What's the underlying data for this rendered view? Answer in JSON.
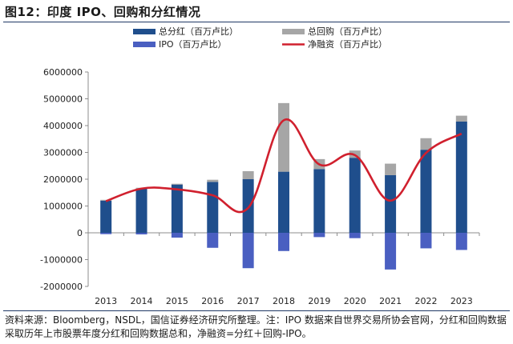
{
  "figure_title": "图12：印度 IPO、回购和分红情况",
  "source_note": "资料来源：Bloomberg，NSDL，国信证券经济研究所整理。注：IPO 数据来自世界交易所协会官网，分红和回购数据采取历年上市股票年度分红和回购数据总和，净融资=分红＋回购-IPO。",
  "colors": {
    "dividend": "#1f4e8c",
    "buyback": "#a6a6a6",
    "ipo": "#4a5fc1",
    "net": "#d0202e"
  },
  "chart_data": {
    "type": "bar",
    "title": "图12：印度 IPO、回购和分红情况",
    "xlabel": "",
    "ylabel": "",
    "ylim": [
      -2000000,
      6000000
    ],
    "yticks": [
      -2000000,
      -1000000,
      0,
      1000000,
      2000000,
      3000000,
      4000000,
      5000000,
      6000000
    ],
    "ytick_labels": [
      "-2000000",
      "-1000000",
      "0",
      "1000000",
      "2000000",
      "3000000",
      "4000000",
      "5000000",
      "6000000"
    ],
    "categories": [
      "2013",
      "2014",
      "2015",
      "2016",
      "2017",
      "2018",
      "2019",
      "2020",
      "2021",
      "2022",
      "2023"
    ],
    "series": [
      {
        "name": "总分红（百万卢比）",
        "kind": "bar-stacked",
        "values": [
          1200000,
          1650000,
          1800000,
          1900000,
          2000000,
          2280000,
          2380000,
          2800000,
          2150000,
          3100000,
          4150000
        ]
      },
      {
        "name": "总回购（百万卢比）",
        "kind": "bar-stacked",
        "values": [
          30000,
          30000,
          30000,
          80000,
          300000,
          2560000,
          370000,
          270000,
          430000,
          430000,
          220000
        ]
      },
      {
        "name": "IPO（百万卢比）",
        "kind": "bar-negative",
        "values": [
          -50000,
          -60000,
          -180000,
          -560000,
          -1320000,
          -680000,
          -160000,
          -200000,
          -1370000,
          -580000,
          -640000
        ]
      },
      {
        "name": "净融资（百万卢比）",
        "kind": "line",
        "values": [
          1180000,
          1650000,
          1620000,
          1400000,
          930000,
          4200000,
          2550000,
          2900000,
          1200000,
          2980000,
          3700000
        ]
      }
    ],
    "legend": {
      "placement": "top",
      "entries": [
        "总分红（百万卢比）",
        "总回购（百万卢比）",
        "IPO（百万卢比）",
        "净融资（百万卢比）"
      ]
    },
    "grid": false
  }
}
